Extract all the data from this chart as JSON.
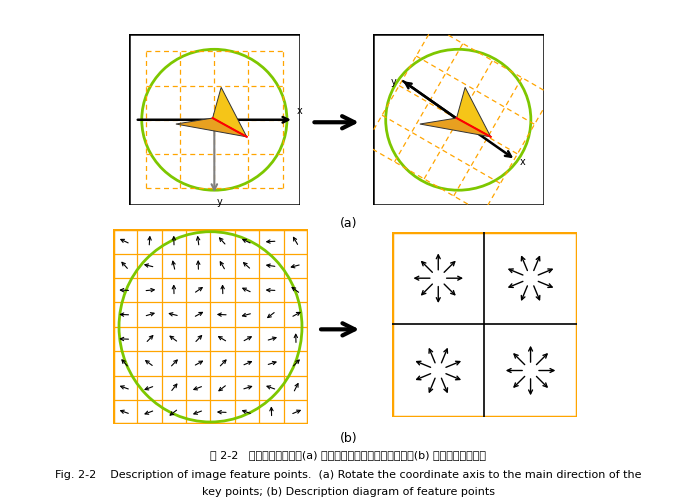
{
  "fig_width": 6.97,
  "fig_height": 4.99,
  "dpi": 100,
  "bg_color": "#ffffff",
  "orange_color": "#FFA500",
  "green_color": "#7DC700",
  "caption_zh": "图 2-2   图像特征点描述。(a) 将坐标轴旋转至关键点主方向；(b) 特征点描述示意图",
  "caption_en_line1": "Fig. 2-2    Description of image feature points.  (a) Rotate the coordinate axis to the main direction of the",
  "caption_en_line2": "key points; (b) Description diagram of feature points"
}
